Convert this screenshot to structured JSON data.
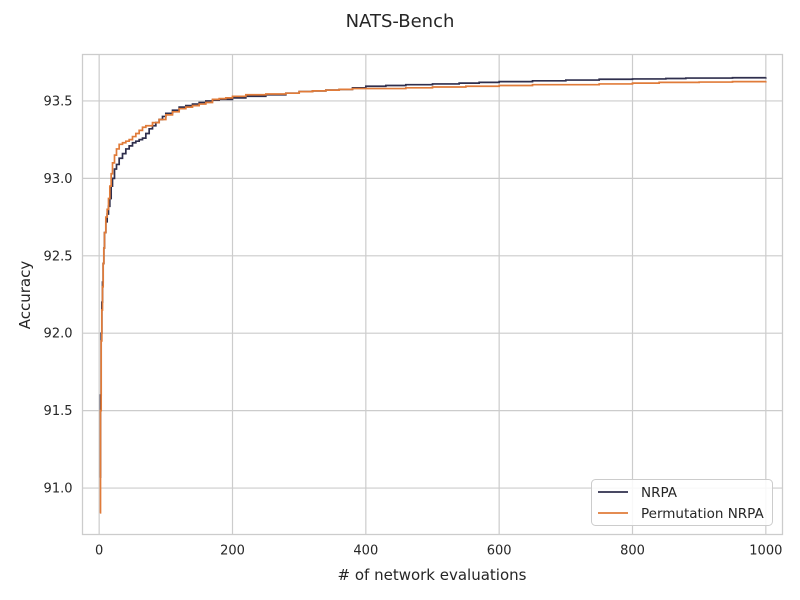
{
  "chart_data": {
    "type": "line",
    "title": "NATS-Bench",
    "xlabel": "# of network evaluations",
    "ylabel": "Accuracy",
    "xlim": [
      -25,
      1025
    ],
    "ylim": [
      90.7,
      93.8
    ],
    "xticks": [
      0,
      200,
      400,
      600,
      800,
      1000
    ],
    "yticks": [
      91.0,
      91.5,
      92.0,
      92.5,
      93.0,
      93.5
    ],
    "xtick_labels": [
      "0",
      "200",
      "400",
      "600",
      "800",
      "1000"
    ],
    "ytick_labels": [
      "91.0",
      "91.5",
      "92.0",
      "92.5",
      "93.0",
      "93.5"
    ],
    "grid": true,
    "legend_position": "lower right",
    "series": [
      {
        "name": "NRPA",
        "color": "#2f2f4d",
        "step": true,
        "x": [
          1,
          2,
          3,
          4,
          5,
          6,
          7,
          8,
          10,
          12,
          14,
          16,
          18,
          20,
          23,
          26,
          30,
          35,
          40,
          45,
          50,
          55,
          60,
          65,
          70,
          75,
          80,
          85,
          90,
          95,
          100,
          110,
          120,
          130,
          140,
          150,
          160,
          170,
          180,
          200,
          220,
          250,
          280,
          300,
          320,
          340,
          360,
          380,
          400,
          430,
          460,
          500,
          540,
          570,
          600,
          650,
          700,
          750,
          800,
          850,
          880,
          950,
          1000
        ],
        "y": [
          91.07,
          91.6,
          92.0,
          92.2,
          92.33,
          92.45,
          92.55,
          92.65,
          92.72,
          92.77,
          92.82,
          92.87,
          92.95,
          93.0,
          93.06,
          93.09,
          93.13,
          93.16,
          93.19,
          93.21,
          93.23,
          93.24,
          93.25,
          93.26,
          93.29,
          93.32,
          93.34,
          93.36,
          93.38,
          93.4,
          93.42,
          93.44,
          93.46,
          93.47,
          93.48,
          93.49,
          93.5,
          93.505,
          93.51,
          93.52,
          93.53,
          93.54,
          93.55,
          93.56,
          93.565,
          93.57,
          93.575,
          93.585,
          93.595,
          93.6,
          93.605,
          93.61,
          93.615,
          93.62,
          93.625,
          93.63,
          93.635,
          93.64,
          93.642,
          93.645,
          93.648,
          93.65,
          93.652
        ]
      },
      {
        "name": "Permutation NRPA",
        "color": "#e07b39",
        "step": true,
        "x": [
          1,
          2,
          3,
          4,
          5,
          6,
          7,
          8,
          10,
          12,
          14,
          16,
          18,
          20,
          23,
          26,
          30,
          35,
          40,
          45,
          50,
          55,
          60,
          65,
          70,
          80,
          90,
          100,
          110,
          120,
          130,
          140,
          150,
          160,
          170,
          180,
          190,
          200,
          220,
          250,
          280,
          300,
          320,
          340,
          360,
          380,
          400,
          430,
          460,
          500,
          550,
          600,
          650,
          700,
          750,
          800,
          840,
          900,
          950,
          1000
        ],
        "y": [
          90.84,
          91.5,
          91.95,
          92.15,
          92.3,
          92.45,
          92.55,
          92.65,
          92.75,
          92.8,
          92.87,
          92.95,
          93.03,
          93.1,
          93.15,
          93.19,
          93.22,
          93.23,
          93.24,
          93.25,
          93.27,
          93.29,
          93.31,
          93.33,
          93.34,
          93.36,
          93.38,
          93.41,
          93.43,
          93.45,
          93.46,
          93.47,
          93.48,
          93.49,
          93.51,
          93.515,
          93.52,
          93.53,
          93.54,
          93.545,
          93.55,
          93.56,
          93.565,
          93.57,
          93.575,
          93.58,
          93.58,
          93.58,
          93.585,
          93.59,
          93.595,
          93.6,
          93.605,
          93.605,
          93.61,
          93.615,
          93.62,
          93.622,
          93.625,
          93.627
        ]
      }
    ]
  }
}
